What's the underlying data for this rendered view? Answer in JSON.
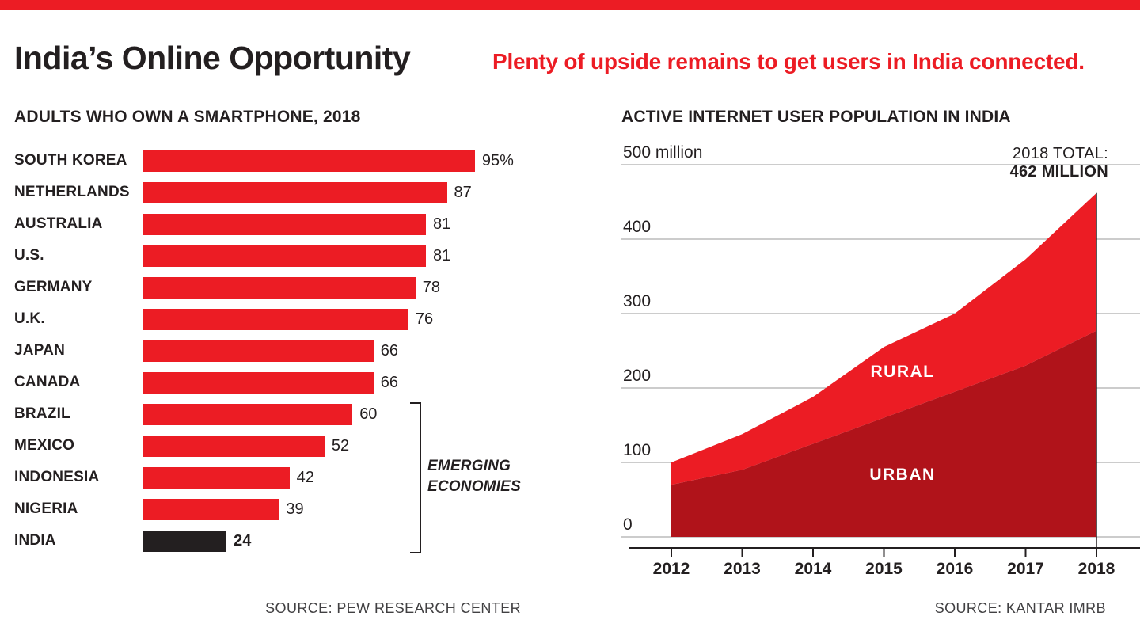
{
  "header": {
    "title": "India’s Online Opportunity",
    "subtitle": "Plenty of upside remains to get users in India connected."
  },
  "colors": {
    "accent_red": "#ec1c24",
    "dark_red": "#b0131a",
    "ink": "#231f20",
    "grid": "#999999"
  },
  "chart_data": [
    {
      "type": "bar",
      "orientation": "horizontal",
      "title": "ADULTS WHO OWN A SMARTPHONE, 2018",
      "categories": [
        "SOUTH KOREA",
        "NETHERLANDS",
        "AUSTRALIA",
        "U.S.",
        "GERMANY",
        "U.K.",
        "JAPAN",
        "CANADA",
        "BRAZIL",
        "MEXICO",
        "INDONESIA",
        "NIGERIA",
        "INDIA"
      ],
      "values": [
        95,
        87,
        81,
        81,
        78,
        76,
        66,
        66,
        60,
        52,
        42,
        39,
        24
      ],
      "value_labels": [
        "95%",
        "87",
        "81",
        "81",
        "78",
        "76",
        "66",
        "66",
        "60",
        "52",
        "42",
        "39",
        "24"
      ],
      "xlim": [
        0,
        100
      ],
      "bar_color": "#ec1c24",
      "highlight": {
        "index": 12,
        "category": "INDIA",
        "color": "#231f20"
      },
      "group_annotation": {
        "label": "EMERGING ECONOMIES",
        "from": "BRAZIL",
        "to": "INDIA"
      },
      "source": "SOURCE: PEW RESEARCH CENTER"
    },
    {
      "type": "area",
      "stacked": true,
      "title": "ACTIVE INTERNET USER POPULATION IN INDIA",
      "x": [
        2012,
        2013,
        2014,
        2015,
        2016,
        2017,
        2018
      ],
      "series": [
        {
          "name": "URBAN",
          "color": "#b0131a",
          "values": [
            70,
            90,
            125,
            160,
            195,
            230,
            277
          ]
        },
        {
          "name": "RURAL",
          "color": "#ec1c24",
          "values": [
            30,
            48,
            63,
            95,
            105,
            143,
            185
          ]
        }
      ],
      "totals": [
        100,
        138,
        188,
        255,
        300,
        373,
        462
      ],
      "ylim": [
        0,
        500
      ],
      "ytick_labels": [
        "0",
        "100",
        "200",
        "300",
        "400",
        "500 million"
      ],
      "grid": true,
      "annotation": {
        "line1": "2018 TOTAL:",
        "line2": "462 MILLION"
      },
      "source": "SOURCE: KANTAR IMRB"
    }
  ]
}
